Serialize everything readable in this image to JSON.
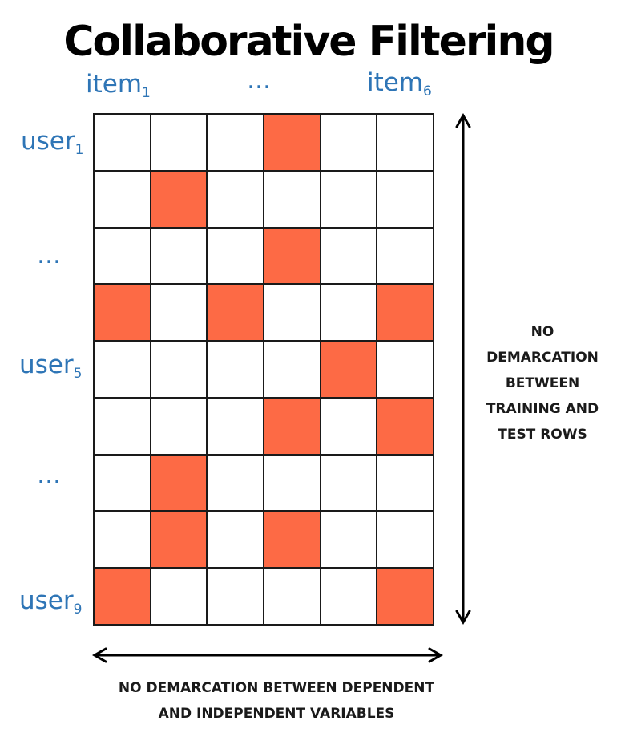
{
  "title": "Collaborative Filtering",
  "columns": {
    "first": {
      "base": "item",
      "sub": "1"
    },
    "middle": "…",
    "last": {
      "base": "item",
      "sub": "6"
    }
  },
  "rows": {
    "first": {
      "base": "user",
      "sub": "1"
    },
    "middle_a": "…",
    "mid": {
      "base": "user",
      "sub": "5"
    },
    "middle_b": "…",
    "last": {
      "base": "user",
      "sub": "9"
    }
  },
  "matrix": {
    "rows": 9,
    "cols": 6,
    "filled": [
      [
        0,
        0,
        0,
        1,
        0,
        0
      ],
      [
        0,
        1,
        0,
        0,
        0,
        0
      ],
      [
        0,
        0,
        0,
        1,
        0,
        0
      ],
      [
        1,
        0,
        1,
        0,
        0,
        1
      ],
      [
        0,
        0,
        0,
        0,
        1,
        0
      ],
      [
        0,
        0,
        0,
        1,
        0,
        1
      ],
      [
        0,
        1,
        0,
        0,
        0,
        0
      ],
      [
        0,
        1,
        0,
        1,
        0,
        0
      ],
      [
        1,
        0,
        0,
        0,
        0,
        1
      ]
    ],
    "fill_color": "#fd6a45",
    "empty_color": "#ffffff",
    "line_color": "#1a1a1a"
  },
  "notes": {
    "vertical": [
      "NO",
      "DEMARCATION",
      "BETWEEN",
      "TRAINING AND",
      "TEST ROWS"
    ],
    "horizontal": [
      "NO DEMARCATION BETWEEN DEPENDENT",
      "AND INDEPENDENT VARIABLES"
    ]
  },
  "colors": {
    "label": "#2e75b6",
    "text": "#000000"
  }
}
